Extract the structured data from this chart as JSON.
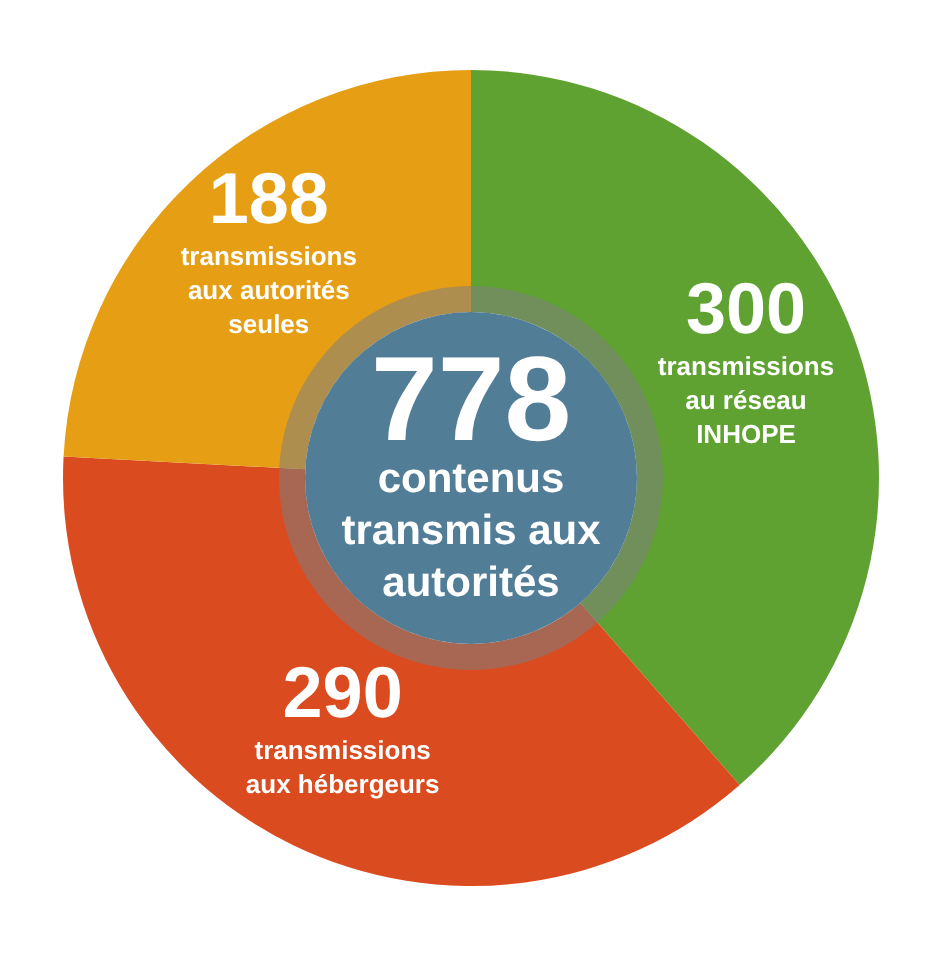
{
  "chart_data": {
    "type": "donut",
    "categories": [
      "transmissions au réseau INHOPE",
      "transmissions aux hébergeurs",
      "transmissions aux autorités seules"
    ],
    "values": [
      300,
      290,
      188
    ],
    "colors": [
      "#5fa232",
      "#db4b20",
      "#e69f15"
    ],
    "data_labels": true,
    "annotations": [
      "778",
      "contenus transmis aux autorités"
    ]
  }
}
